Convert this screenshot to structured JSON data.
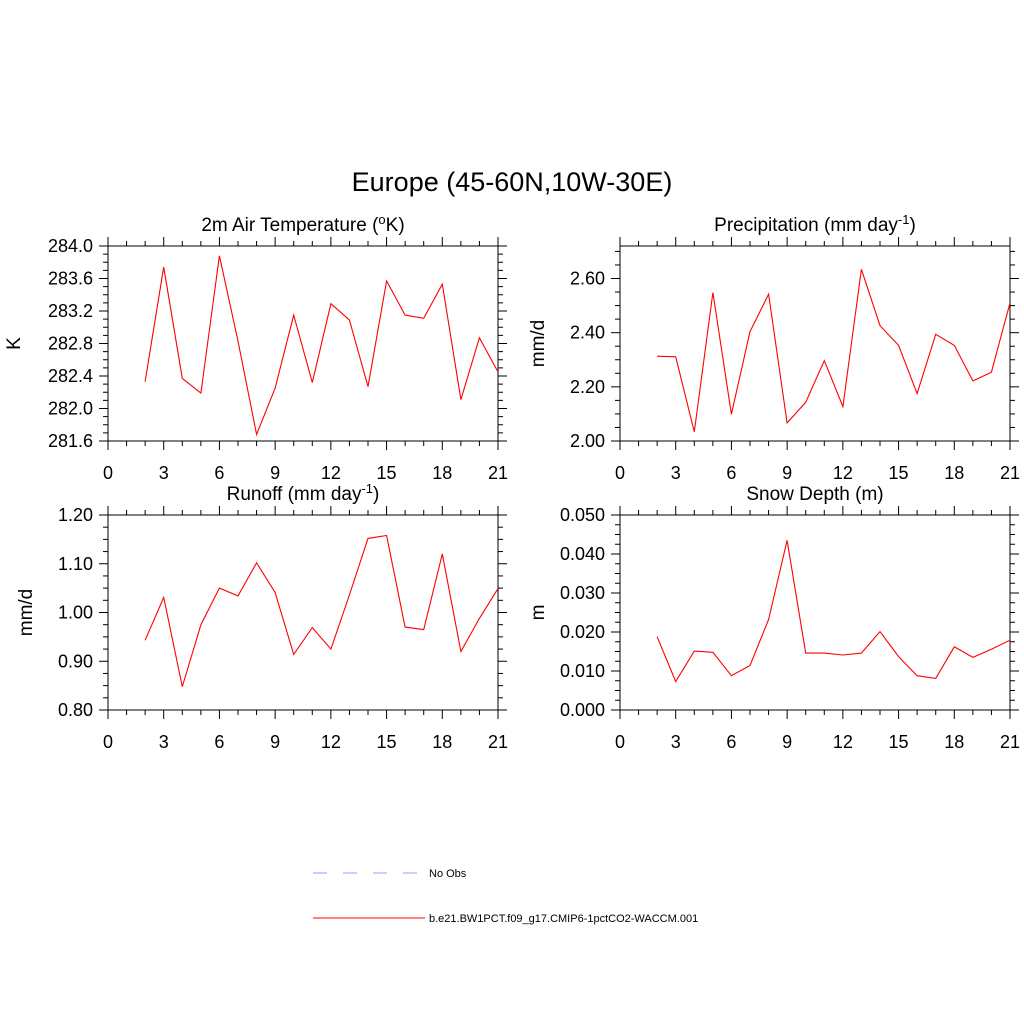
{
  "page_title": "Europe (45-60N,10W-30E)",
  "legend": {
    "obs_label": "No Obs",
    "obs_color": "#aab0ff",
    "model_label": "b.e21.BW1PCT.f09_g17.CMIP6-1pctCO2-WACCM.001",
    "model_color": "#ff0000"
  },
  "chart_data": [
    {
      "type": "line",
      "title": "2m Air Temperature",
      "title_units": "(°K)",
      "ylabel": "K",
      "xlim": [
        0,
        21
      ],
      "ylim": [
        281.6,
        284.0
      ],
      "xticks": [
        "0",
        "3",
        "6",
        "9",
        "12",
        "15",
        "18",
        "21"
      ],
      "yticks": [
        "281.6",
        "282.0",
        "282.4",
        "282.8",
        "283.2",
        "283.6",
        "284.0"
      ],
      "series": [
        {
          "color": "#ff0000",
          "x": [
            2,
            3,
            4,
            5,
            6,
            7,
            8,
            9,
            10,
            11,
            12,
            13,
            14,
            15,
            16,
            17,
            18,
            19,
            20,
            21
          ],
          "y": [
            282.33,
            283.74,
            282.37,
            282.19,
            283.88,
            282.83,
            281.68,
            282.25,
            283.15,
            282.32,
            283.29,
            283.09,
            282.27,
            283.57,
            283.15,
            283.11,
            283.53,
            282.11,
            282.87,
            282.45
          ]
        }
      ]
    },
    {
      "type": "line",
      "title": "Precipitation",
      "title_units": "(mm day-1)",
      "ylabel": "mm/d",
      "xlim": [
        0,
        21
      ],
      "ylim": [
        2.0,
        2.72
      ],
      "xticks": [
        "0",
        "3",
        "6",
        "9",
        "12",
        "15",
        "18",
        "21"
      ],
      "yticks": [
        "2.00",
        "2.20",
        "2.40",
        "2.60"
      ],
      "series": [
        {
          "color": "#ff0000",
          "x": [
            2,
            3,
            4,
            5,
            6,
            7,
            8,
            9,
            10,
            11,
            12,
            13,
            14,
            15,
            16,
            17,
            18,
            19,
            20,
            21
          ],
          "y": [
            2.313,
            2.311,
            2.034,
            2.548,
            2.099,
            2.404,
            2.542,
            2.067,
            2.143,
            2.297,
            2.127,
            2.634,
            2.426,
            2.353,
            2.175,
            2.394,
            2.353,
            2.222,
            2.254,
            2.51
          ]
        }
      ]
    },
    {
      "type": "line",
      "title": "Runoff",
      "title_units": "(mm day-1)",
      "ylabel": "mm/d",
      "xlim": [
        0,
        21
      ],
      "ylim": [
        0.8,
        1.2
      ],
      "xticks": [
        "0",
        "3",
        "6",
        "9",
        "12",
        "15",
        "18",
        "21"
      ],
      "yticks": [
        "0.80",
        "0.90",
        "1.00",
        "1.10",
        "1.20"
      ],
      "series": [
        {
          "color": "#ff0000",
          "x": [
            2,
            3,
            4,
            5,
            6,
            7,
            8,
            9,
            10,
            11,
            12,
            13,
            14,
            15,
            16,
            17,
            18,
            19,
            20,
            21
          ],
          "y": [
            0.943,
            1.031,
            0.848,
            0.975,
            1.05,
            1.034,
            1.102,
            1.041,
            0.914,
            0.969,
            0.925,
            1.036,
            1.152,
            1.158,
            0.97,
            0.965,
            1.12,
            0.92,
            0.988,
            1.049
          ]
        }
      ]
    },
    {
      "type": "line",
      "title": "Snow Depth",
      "title_units": "(m)",
      "ylabel": "m",
      "xlim": [
        0,
        21
      ],
      "ylim": [
        0.0,
        0.05
      ],
      "xticks": [
        "0",
        "3",
        "6",
        "9",
        "12",
        "15",
        "18",
        "21"
      ],
      "yticks": [
        "0.000",
        "0.010",
        "0.020",
        "0.030",
        "0.040",
        "0.050"
      ],
      "series": [
        {
          "color": "#ff0000",
          "x": [
            2,
            3,
            4,
            5,
            6,
            7,
            8,
            9,
            10,
            11,
            12,
            13,
            14,
            15,
            16,
            17,
            18,
            19,
            20,
            21
          ],
          "y": [
            0.0188,
            0.0073,
            0.0151,
            0.0148,
            0.0088,
            0.0114,
            0.0232,
            0.0435,
            0.0146,
            0.0146,
            0.0141,
            0.0146,
            0.0201,
            0.0137,
            0.0088,
            0.0081,
            0.0162,
            0.0135,
            0.0156,
            0.0179
          ]
        }
      ]
    }
  ]
}
